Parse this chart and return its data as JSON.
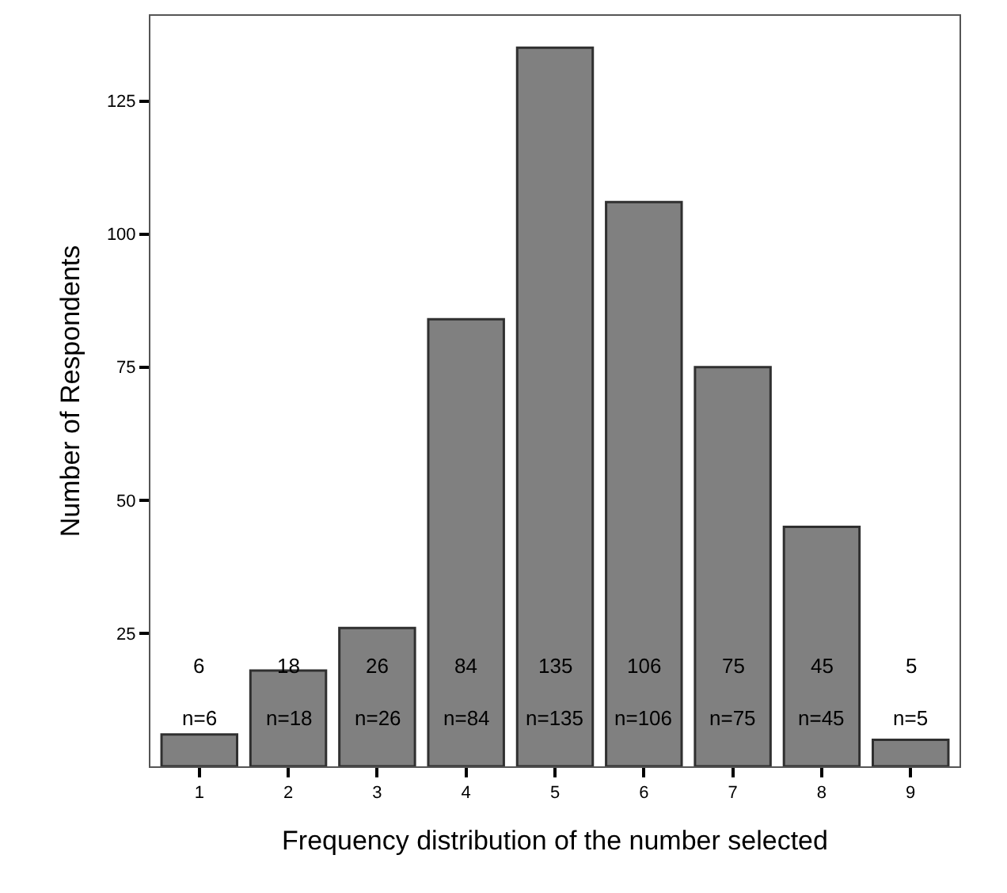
{
  "chart_data": {
    "type": "bar",
    "xlabel": "Frequency distribution of the number selected",
    "ylabel": "Number of Respondents",
    "categories": [
      "1",
      "2",
      "3",
      "4",
      "5",
      "6",
      "7",
      "8",
      "9"
    ],
    "values": [
      6,
      18,
      26,
      84,
      135,
      106,
      75,
      45,
      5
    ],
    "value_labels": [
      "6",
      "18",
      "26",
      "84",
      "135",
      "106",
      "75",
      "45",
      "5"
    ],
    "annotations": [
      "n=6",
      "n=18",
      "n=26",
      "n=84",
      "n=135",
      "n=106",
      "n=75",
      "n=45",
      "n=5"
    ],
    "color": "#808080",
    "ylim": [
      0,
      141
    ],
    "yticks": [
      25,
      50,
      75,
      100,
      125
    ],
    "grid": false,
    "legend": false
  }
}
